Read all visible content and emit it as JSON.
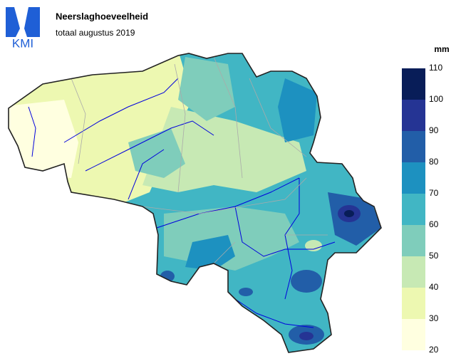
{
  "header": {
    "logo": "KMI",
    "title": "Neerslaghoeveelheid",
    "subtitle": "totaal augustus 2019"
  },
  "legend": {
    "unit": "mm",
    "bins": [
      20,
      30,
      40,
      50,
      60,
      70,
      80,
      90,
      100,
      110
    ],
    "colors": [
      "#ffffe0",
      "#edf8b1",
      "#c7e9b4",
      "#7fcdbb",
      "#41b6c4",
      "#1d91c0",
      "#225ea8",
      "#253494",
      "#081d58"
    ]
  }
}
